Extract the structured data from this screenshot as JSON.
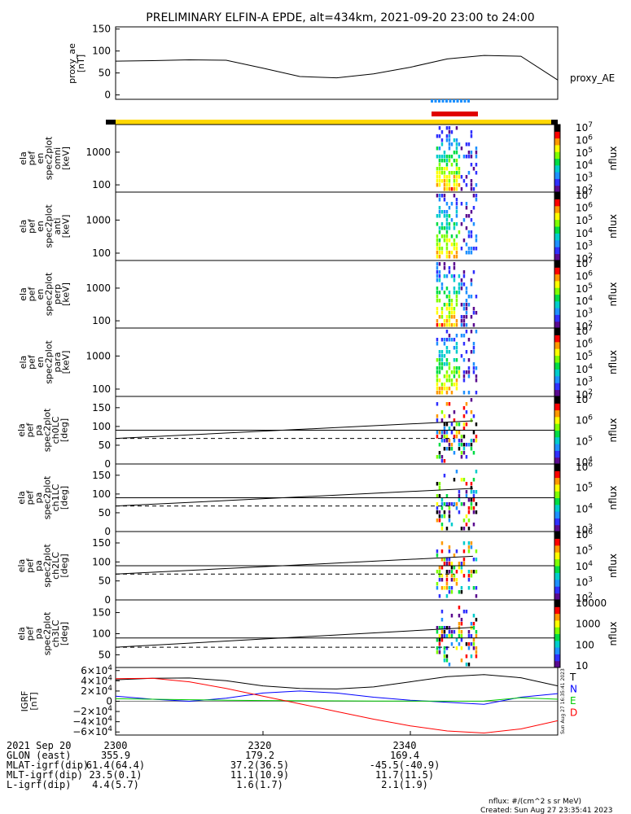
{
  "title": "PRELIMINARY ELFIN-A EPDE, alt=434km, 2021-09-20 23:00 to 24:00",
  "colors": {
    "proxy_line": "#000000",
    "bar_science": "#ffd700",
    "bar_blue": "#1e90ff",
    "bar_red": "#e00000",
    "T": "#000000",
    "N": "#0000ff",
    "E": "#00cc00",
    "D": "#ff0000"
  },
  "chart_data": [
    {
      "type": "line",
      "id": "proxy_ae",
      "ylabel_lines": [
        "proxy_ae",
        "[nT]"
      ],
      "legend": "proxy_AE",
      "ylim": [
        -10,
        155
      ],
      "yticks": [
        0,
        50,
        100,
        150
      ],
      "x": [
        0,
        5,
        10,
        15,
        20,
        25,
        30,
        35,
        40,
        45,
        50,
        55,
        60
      ],
      "y": [
        77,
        78,
        80,
        79,
        61,
        42,
        39,
        48,
        63,
        82,
        90,
        88,
        34
      ]
    },
    {
      "type": "heatmap",
      "id": "en_omni",
      "ylabel_lines": [
        "ela",
        "pef",
        "en",
        "spec2plot",
        "omni",
        "[keV]"
      ],
      "yticks": [
        100,
        1000
      ],
      "ylog": true,
      "colorbar": {
        "label": "nflux",
        "ticks": [
          "10^2",
          "10^3",
          "10^4",
          "10^5",
          "10^6",
          "10^7"
        ]
      }
    },
    {
      "type": "heatmap",
      "id": "en_anti",
      "ylabel_lines": [
        "ela",
        "pef",
        "en",
        "spec2plot",
        "anti",
        "[keV]"
      ],
      "yticks": [
        100,
        1000
      ],
      "ylog": true,
      "colorbar": {
        "label": "nflux",
        "ticks": [
          "10^2",
          "10^3",
          "10^4",
          "10^5",
          "10^6",
          "10^7"
        ]
      }
    },
    {
      "type": "heatmap",
      "id": "en_perp",
      "ylabel_lines": [
        "ela",
        "pef",
        "en",
        "spec2plot",
        "perp",
        "[keV]"
      ],
      "yticks": [
        100,
        1000
      ],
      "ylog": true,
      "colorbar": {
        "label": "nflux",
        "ticks": [
          "10^2",
          "10^3",
          "10^4",
          "10^5",
          "10^6",
          "10^7"
        ]
      }
    },
    {
      "type": "heatmap",
      "id": "en_para",
      "ylabel_lines": [
        "ela",
        "pef",
        "en",
        "spec2plot",
        "para",
        "[keV]"
      ],
      "yticks": [
        100,
        1000
      ],
      "ylog": true,
      "colorbar": {
        "label": "nflux",
        "ticks": [
          "10^2",
          "10^3",
          "10^4",
          "10^5",
          "10^6",
          "10^7"
        ]
      }
    },
    {
      "type": "heatmap",
      "id": "pa_ch0",
      "ylabel_lines": [
        "ela",
        "pef",
        "pa",
        "spec2plot",
        "ch0LC",
        "[deg]"
      ],
      "yticks": [
        0,
        50,
        100,
        150
      ],
      "ylim": [
        0,
        180
      ],
      "colorbar": {
        "label": "nflux",
        "ticks": [
          "10^4",
          "10^5",
          "10^6",
          "10^7"
        ]
      }
    },
    {
      "type": "heatmap",
      "id": "pa_ch1",
      "ylabel_lines": [
        "ela",
        "pef",
        "pa",
        "spec2plot",
        "ch1LC",
        "[deg]"
      ],
      "yticks": [
        0,
        50,
        100,
        150
      ],
      "ylim": [
        0,
        180
      ],
      "colorbar": {
        "label": "nflux",
        "ticks": [
          "10^3",
          "10^4",
          "10^5",
          "10^6"
        ]
      }
    },
    {
      "type": "heatmap",
      "id": "pa_ch2",
      "ylabel_lines": [
        "ela",
        "pef",
        "pa",
        "spec2plot",
        "ch2LC",
        "[deg]"
      ],
      "yticks": [
        0,
        50,
        100,
        150
      ],
      "ylim": [
        0,
        180
      ],
      "colorbar": {
        "label": "nflux",
        "ticks": [
          "10^2",
          "10^3",
          "10^4",
          "10^5",
          "10^6"
        ]
      }
    },
    {
      "type": "heatmap",
      "id": "pa_ch3",
      "ylabel_lines": [
        "ela",
        "pef",
        "pa",
        "spec2plot",
        "ch3LC",
        "[deg]"
      ],
      "yticks": [
        50,
        100,
        150
      ],
      "ylim": [
        20,
        180
      ],
      "colorbar": {
        "label": "nflux",
        "ticks": [
          "10",
          "100",
          "1000",
          "10000"
        ]
      }
    },
    {
      "type": "line",
      "id": "igrf",
      "ylabel_lines": [
        "IGRF",
        "[nT]"
      ],
      "ylim": [
        -66000,
        66000
      ],
      "yticks": [
        "6×10^4",
        "4×10^4",
        "2×10^4",
        "0",
        "−2×10^4",
        "−4×10^4",
        "−6×10^4"
      ],
      "x": [
        0,
        5,
        10,
        15,
        20,
        25,
        30,
        35,
        40,
        45,
        50,
        55,
        60
      ],
      "series": [
        {
          "name": "T",
          "y": [
            42000,
            45000,
            45500,
            40000,
            30000,
            25000,
            24000,
            28000,
            38000,
            48000,
            52000,
            46000,
            30000
          ]
        },
        {
          "name": "N",
          "y": [
            10000,
            4000,
            0,
            6000,
            16000,
            20000,
            16000,
            8000,
            2000,
            -2000,
            -6000,
            8000,
            15000
          ]
        },
        {
          "name": "E",
          "y": [
            5000,
            4000,
            3000,
            2000,
            1500,
            1000,
            800,
            500,
            300,
            200,
            500,
            7000,
            4000
          ]
        },
        {
          "name": "D",
          "y": [
            44000,
            45000,
            38000,
            25000,
            10000,
            -5000,
            -20000,
            -35000,
            -48000,
            -58000,
            -62000,
            -54000,
            -38000
          ]
        }
      ],
      "legend": [
        "T",
        "N",
        "E",
        "D"
      ]
    }
  ],
  "footer": {
    "rows": [
      {
        "label": "2021 Sep 20",
        "values": [
          "2300",
          "2320",
          "2340"
        ]
      },
      {
        "label": "GLON (east)",
        "values": [
          "355.9",
          "179.2",
          "169.4"
        ]
      },
      {
        "label": "MLAT-igrf(dip)",
        "values": [
          "61.4(64.4)",
          "37.2(36.5)",
          "-45.5(-40.9)"
        ]
      },
      {
        "label": "MLT-igrf(dip)",
        "values": [
          "23.5(0.1)",
          "11.1(10.9)",
          "11.7(11.5)"
        ]
      },
      {
        "label": "L-igrf(dip)",
        "values": [
          "4.4(5.7)",
          "1.6(1.7)",
          "2.1(1.9)"
        ]
      }
    ],
    "units_note": "nflux: #/(cm^2 s sr MeV)",
    "created": "Created: Sun Aug 27 23:35:41 2023",
    "side_stamp": "Sun Aug 27 16:35:41 2023"
  }
}
